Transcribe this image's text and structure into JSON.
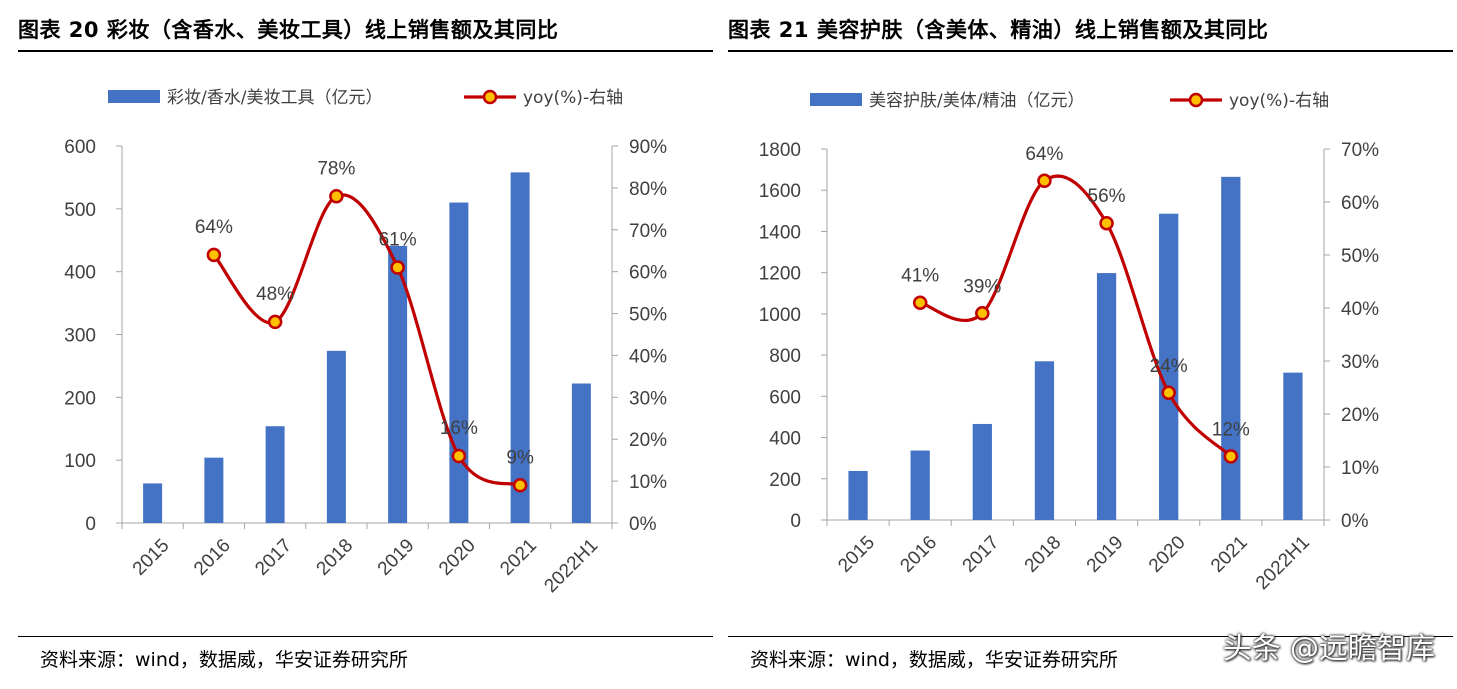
{
  "colors": {
    "bar": "#4472C4",
    "line": "#C00000",
    "marker_fill": "#FFC000",
    "axis": "#A6A6A6",
    "tick_text": "#404040"
  },
  "left": {
    "title": "图表 20  彩妆（含香水、美妆工具）线上销售额及其同比",
    "source": "资料来源：wind，数据威，华安证券研究所"
  },
  "right": {
    "title": "图表 21  美容护肤（含美体、精油）线上销售额及其同比",
    "source": "资料来源：wind，数据威，华安证券研究所"
  },
  "watermark": "头条 @远瞻智库",
  "chart_data": [
    {
      "type": "bar+line",
      "categories": [
        "2015",
        "2016",
        "2017",
        "2018",
        "2019",
        "2020",
        "2021",
        "2022H1"
      ],
      "series": [
        {
          "name": "彩妆/香水/美妆工具（亿元）",
          "type": "bar",
          "axis": "left",
          "values": [
            63,
            104,
            154,
            274,
            441,
            510,
            558,
            222
          ]
        },
        {
          "name": "yoy(%)-右轴",
          "type": "line",
          "axis": "right",
          "values": [
            null,
            64,
            48,
            78,
            61,
            16,
            9,
            null
          ],
          "labels": [
            "",
            "64%",
            "48%",
            "78%",
            "61%",
            "16%",
            "9%",
            ""
          ]
        }
      ],
      "y_left": {
        "min": 0,
        "max": 600,
        "step": 100,
        "ticks": [
          "0",
          "100",
          "200",
          "300",
          "400",
          "500",
          "600"
        ]
      },
      "y_right": {
        "min": 0,
        "max": 90,
        "step": 10,
        "ticks": [
          "0%",
          "10%",
          "20%",
          "30%",
          "40%",
          "50%",
          "60%",
          "70%",
          "80%",
          "90%"
        ]
      },
      "legend": "top",
      "grid": false
    },
    {
      "type": "bar+line",
      "categories": [
        "2015",
        "2016",
        "2017",
        "2018",
        "2019",
        "2020",
        "2021",
        "2022H1"
      ],
      "series": [
        {
          "name": "美容护肤/美体/精油（亿元）",
          "type": "bar",
          "axis": "left",
          "values": [
            238,
            337,
            466,
            770,
            1198,
            1486,
            1665,
            715
          ]
        },
        {
          "name": "yoy(%)-右轴",
          "type": "line",
          "axis": "right",
          "values": [
            null,
            41,
            39,
            64,
            56,
            24,
            12,
            null
          ],
          "labels": [
            "",
            "41%",
            "39%",
            "64%",
            "56%",
            "24%",
            "12%",
            ""
          ]
        }
      ],
      "y_left": {
        "min": 0,
        "max": 1800,
        "step": 200,
        "ticks": [
          "0",
          "200",
          "400",
          "600",
          "800",
          "1000",
          "1200",
          "1400",
          "1600",
          "1800"
        ]
      },
      "y_right": {
        "min": 0,
        "max": 70,
        "step": 10,
        "ticks": [
          "0%",
          "10%",
          "20%",
          "30%",
          "40%",
          "50%",
          "60%",
          "70%"
        ]
      },
      "legend": "top",
      "grid": false
    }
  ]
}
